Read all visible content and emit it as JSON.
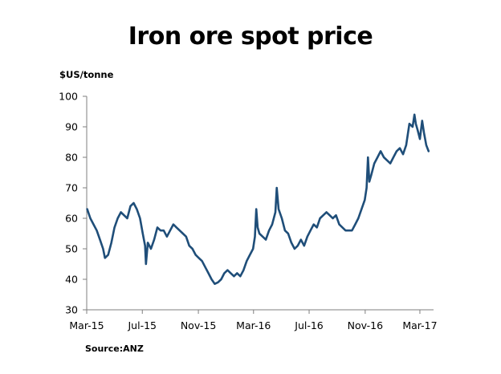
{
  "chart_data": {
    "type": "line",
    "title": "Iron ore spot price",
    "ylabel": "$US/tonne",
    "source": "Source:ANZ",
    "ylim": [
      30,
      100
    ],
    "yticks": [
      30,
      40,
      50,
      60,
      70,
      80,
      90,
      100
    ],
    "xlim": [
      "2015-03-01",
      "2017-03-31"
    ],
    "xticks": [
      {
        "date": "2015-03-01",
        "label": "Mar-15"
      },
      {
        "date": "2015-07-01",
        "label": "Jul-15"
      },
      {
        "date": "2015-11-01",
        "label": "Nov-15"
      },
      {
        "date": "2016-03-01",
        "label": "Mar-16"
      },
      {
        "date": "2016-07-01",
        "label": "Jul-16"
      },
      {
        "date": "2016-11-01",
        "label": "Nov-16"
      },
      {
        "date": "2017-03-01",
        "label": "Mar-17"
      }
    ],
    "grid": false,
    "line_color": "#1f4e79",
    "series": [
      {
        "points": [
          [
            "2015-03-02",
            63
          ],
          [
            "2015-03-09",
            60
          ],
          [
            "2015-03-16",
            58
          ],
          [
            "2015-03-23",
            56
          ],
          [
            "2015-03-30",
            53
          ],
          [
            "2015-04-06",
            50
          ],
          [
            "2015-04-10",
            47
          ],
          [
            "2015-04-17",
            48
          ],
          [
            "2015-04-24",
            52
          ],
          [
            "2015-05-01",
            57
          ],
          [
            "2015-05-08",
            60
          ],
          [
            "2015-05-15",
            62
          ],
          [
            "2015-05-22",
            61
          ],
          [
            "2015-05-29",
            60
          ],
          [
            "2015-06-05",
            64
          ],
          [
            "2015-06-12",
            65
          ],
          [
            "2015-06-19",
            63
          ],
          [
            "2015-06-26",
            60
          ],
          [
            "2015-07-02",
            55
          ],
          [
            "2015-07-07",
            51
          ],
          [
            "2015-07-09",
            45
          ],
          [
            "2015-07-13",
            52
          ],
          [
            "2015-07-20",
            50
          ],
          [
            "2015-07-27",
            53
          ],
          [
            "2015-08-03",
            57
          ],
          [
            "2015-08-10",
            56
          ],
          [
            "2015-08-17",
            56
          ],
          [
            "2015-08-24",
            54
          ],
          [
            "2015-08-31",
            56
          ],
          [
            "2015-09-07",
            58
          ],
          [
            "2015-09-14",
            57
          ],
          [
            "2015-09-21",
            56
          ],
          [
            "2015-09-28",
            55
          ],
          [
            "2015-10-05",
            54
          ],
          [
            "2015-10-12",
            51
          ],
          [
            "2015-10-19",
            50
          ],
          [
            "2015-10-26",
            48
          ],
          [
            "2015-11-02",
            47
          ],
          [
            "2015-11-09",
            46
          ],
          [
            "2015-11-16",
            44
          ],
          [
            "2015-11-23",
            42
          ],
          [
            "2015-11-30",
            40
          ],
          [
            "2015-12-07",
            38.5
          ],
          [
            "2015-12-14",
            39
          ],
          [
            "2015-12-21",
            40
          ],
          [
            "2015-12-28",
            42
          ],
          [
            "2016-01-04",
            43
          ],
          [
            "2016-01-11",
            42
          ],
          [
            "2016-01-18",
            41
          ],
          [
            "2016-01-25",
            42
          ],
          [
            "2016-02-01",
            41
          ],
          [
            "2016-02-08",
            43
          ],
          [
            "2016-02-15",
            46
          ],
          [
            "2016-02-22",
            48
          ],
          [
            "2016-02-29",
            50
          ],
          [
            "2016-03-04",
            54
          ],
          [
            "2016-03-07",
            63
          ],
          [
            "2016-03-10",
            57
          ],
          [
            "2016-03-14",
            55
          ],
          [
            "2016-03-21",
            54
          ],
          [
            "2016-03-28",
            53
          ],
          [
            "2016-04-04",
            56
          ],
          [
            "2016-04-11",
            58
          ],
          [
            "2016-04-18",
            62
          ],
          [
            "2016-04-21",
            70
          ],
          [
            "2016-04-25",
            63
          ],
          [
            "2016-05-02",
            60
          ],
          [
            "2016-05-09",
            56
          ],
          [
            "2016-05-16",
            55
          ],
          [
            "2016-05-23",
            52
          ],
          [
            "2016-05-30",
            50
          ],
          [
            "2016-06-06",
            51
          ],
          [
            "2016-06-13",
            53
          ],
          [
            "2016-06-20",
            51
          ],
          [
            "2016-06-27",
            54
          ],
          [
            "2016-07-04",
            56
          ],
          [
            "2016-07-11",
            58
          ],
          [
            "2016-07-18",
            57
          ],
          [
            "2016-07-25",
            60
          ],
          [
            "2016-08-01",
            61
          ],
          [
            "2016-08-08",
            62
          ],
          [
            "2016-08-15",
            61
          ],
          [
            "2016-08-22",
            60
          ],
          [
            "2016-08-29",
            61
          ],
          [
            "2016-09-05",
            58
          ],
          [
            "2016-09-12",
            57
          ],
          [
            "2016-09-19",
            56
          ],
          [
            "2016-09-26",
            56
          ],
          [
            "2016-10-03",
            56
          ],
          [
            "2016-10-10",
            58
          ],
          [
            "2016-10-17",
            60
          ],
          [
            "2016-10-24",
            63
          ],
          [
            "2016-10-31",
            66
          ],
          [
            "2016-11-04",
            70
          ],
          [
            "2016-11-07",
            80
          ],
          [
            "2016-11-10",
            72
          ],
          [
            "2016-11-14",
            74
          ],
          [
            "2016-11-21",
            78
          ],
          [
            "2016-11-28",
            80
          ],
          [
            "2016-12-05",
            82
          ],
          [
            "2016-12-12",
            80
          ],
          [
            "2016-12-19",
            79
          ],
          [
            "2016-12-26",
            78
          ],
          [
            "2017-01-02",
            80
          ],
          [
            "2017-01-09",
            82
          ],
          [
            "2017-01-16",
            83
          ],
          [
            "2017-01-23",
            81
          ],
          [
            "2017-01-30",
            84
          ],
          [
            "2017-02-06",
            91
          ],
          [
            "2017-02-13",
            90
          ],
          [
            "2017-02-17",
            94
          ],
          [
            "2017-02-20",
            91
          ],
          [
            "2017-02-24",
            89
          ],
          [
            "2017-03-01",
            86
          ],
          [
            "2017-03-06",
            92
          ],
          [
            "2017-03-10",
            88
          ],
          [
            "2017-03-15",
            84
          ],
          [
            "2017-03-20",
            82
          ]
        ]
      }
    ]
  }
}
